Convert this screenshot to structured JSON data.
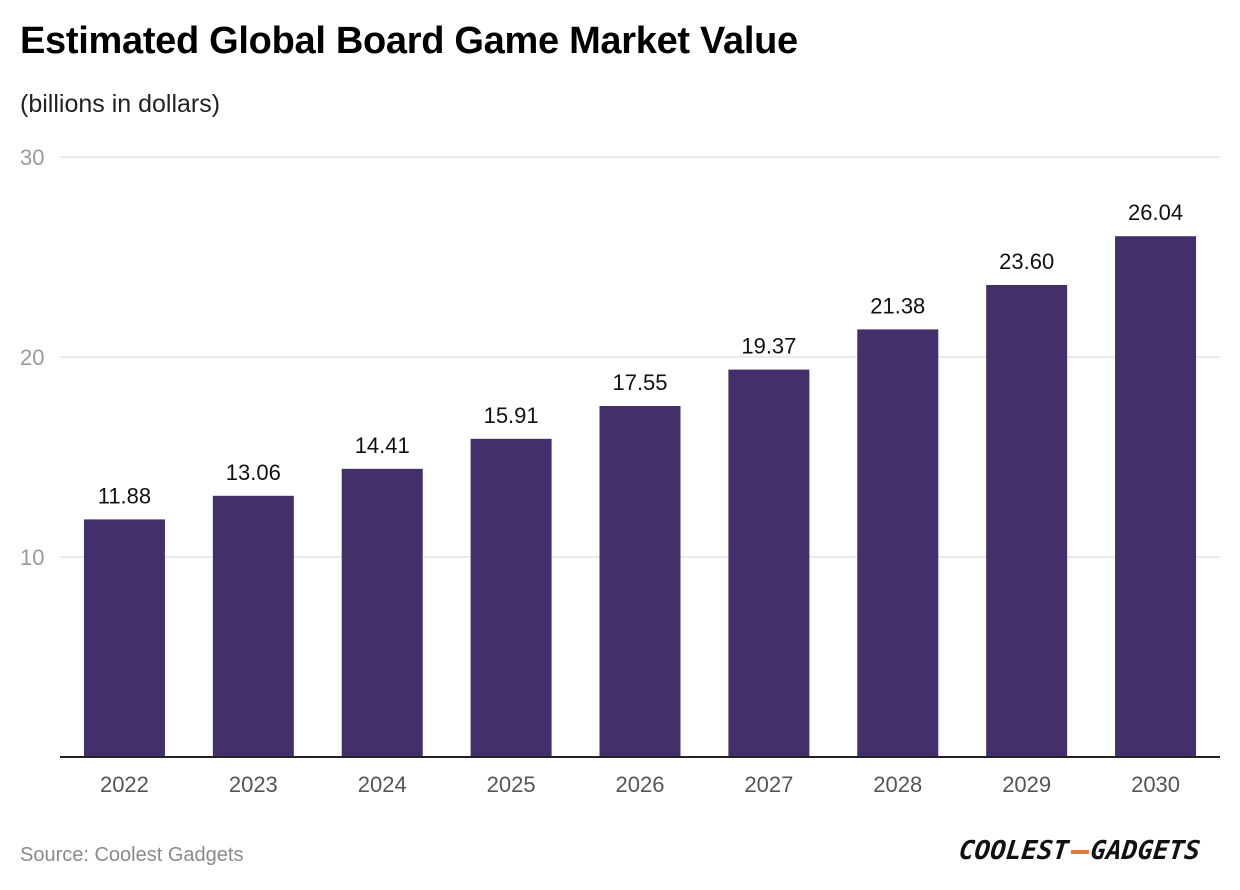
{
  "chart_data": {
    "type": "bar",
    "title": "Estimated Global Board Game Market Value",
    "subtitle": "(billions in dollars)",
    "categories": [
      "2022",
      "2023",
      "2024",
      "2025",
      "2026",
      "2027",
      "2028",
      "2029",
      "2030"
    ],
    "values": [
      11.88,
      13.06,
      14.41,
      15.91,
      17.55,
      19.37,
      21.38,
      23.6,
      26.04
    ],
    "value_labels": [
      "11.88",
      "13.06",
      "14.41",
      "15.91",
      "17.55",
      "19.37",
      "21.38",
      "23.60",
      "26.04"
    ],
    "xlabel": "",
    "ylabel": "",
    "ylim": [
      0,
      30
    ],
    "yticks": [
      "10",
      "20",
      "30"
    ],
    "grid": true,
    "legend": "none",
    "bar_color": "#43306a"
  },
  "footer": {
    "source": "Source: Coolest Gadgets",
    "logo_left": "COOLEST",
    "logo_right": "GADGETS"
  },
  "colors": {
    "grid": "#e3e3e3",
    "axis": "#222222",
    "logo_accent": "#e07b39"
  }
}
